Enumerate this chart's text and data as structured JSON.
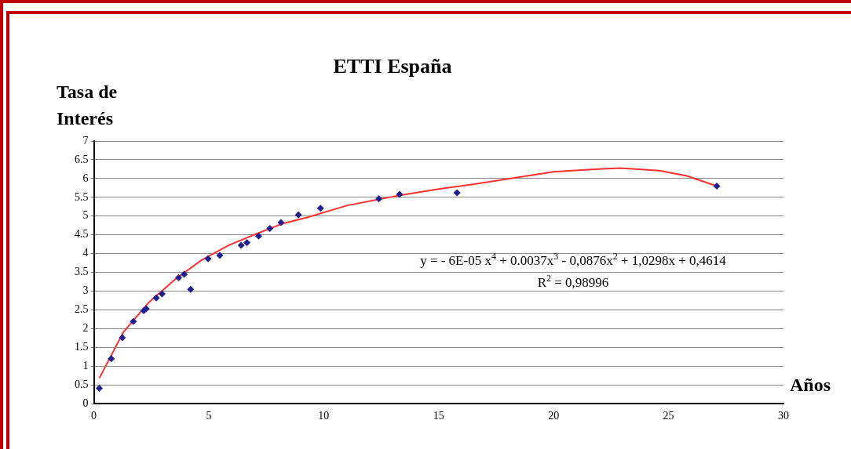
{
  "chart_data": {
    "type": "scatter",
    "title": "ETTI  España",
    "ylabel": "Tasa de Interés",
    "xlabel": "Años",
    "xlim": [
      0,
      30
    ],
    "xticks": [
      0,
      5,
      10,
      15,
      20,
      25,
      30
    ],
    "ylim": [
      0,
      7
    ],
    "yticks": [
      0,
      0.5,
      1,
      1.5,
      2,
      2.5,
      3,
      3.5,
      4,
      4.5,
      5,
      5.5,
      6,
      6.5,
      7
    ],
    "grid": "y",
    "marker": "diamond",
    "annotations": [
      "y = - 6E-05 x$^{4}$ + 0.0037x$^{3}$  - 0,0876x$^{2}$ + 1,0298x  + 0,4614",
      "R$^{2}$ = 0,98996"
    ],
    "series": [
      {
        "type": "scatter",
        "color": "#1f1f8f",
        "x": [
          0.24,
          0.76,
          1.24,
          1.72,
          2.17,
          2.28,
          2.72,
          2.97,
          3.69,
          3.93,
          4.21,
          4.97,
          5.48,
          6.41,
          6.66,
          7.17,
          7.66,
          8.14,
          8.9,
          9.86,
          12.4,
          13.3,
          15.8,
          27.1
        ],
        "values": [
          0.41,
          1.2,
          1.76,
          2.19,
          2.48,
          2.53,
          2.82,
          2.93,
          3.36,
          3.45,
          3.05,
          3.86,
          3.95,
          4.22,
          4.29,
          4.47,
          4.67,
          4.83,
          5.03,
          5.21,
          5.46,
          5.58,
          5.62,
          5.8
        ]
      },
      {
        "type": "line",
        "color": "#ff3030",
        "marker": "none",
        "x": [
          0.24,
          1.28,
          2.41,
          3.55,
          4.72,
          5.86,
          7.0,
          8.17,
          9.31,
          11.0,
          13.1,
          15.0,
          16.55,
          18.3,
          20.0,
          21.5,
          22.9,
          24.6,
          25.8,
          27.1
        ],
        "values": [
          0.68,
          1.9,
          2.71,
          3.32,
          3.84,
          4.22,
          4.51,
          4.79,
          4.97,
          5.28,
          5.53,
          5.72,
          5.85,
          6.02,
          6.18,
          6.24,
          6.28,
          6.21,
          6.07,
          5.8
        ]
      }
    ]
  }
}
